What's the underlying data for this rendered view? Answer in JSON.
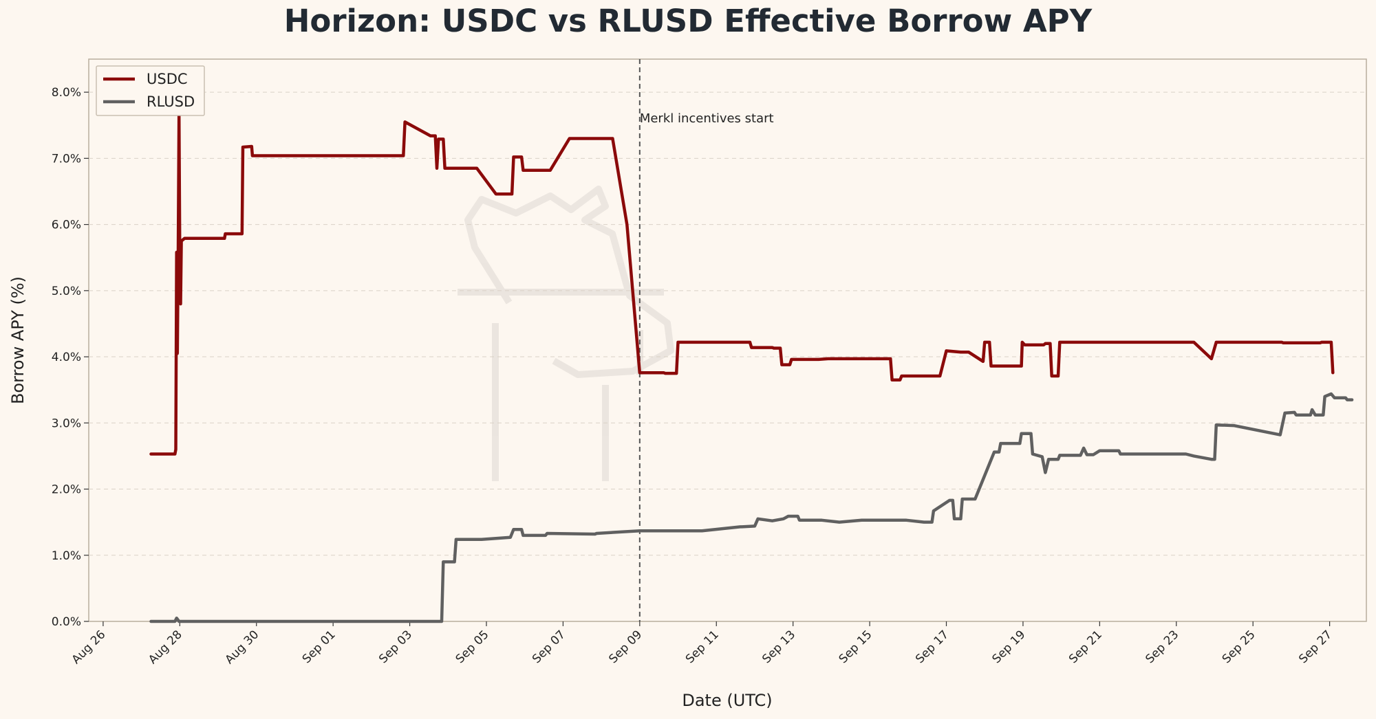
{
  "chart_data": {
    "type": "line",
    "title": "Horizon: USDC vs RLUSD Effective Borrow APY",
    "xlabel": "Date (UTC)",
    "ylabel": "Borrow APY (%)",
    "x_is_date": true,
    "x_ticks": [
      {
        "date": "2025-08-26",
        "label": "Aug 26"
      },
      {
        "date": "2025-08-28",
        "label": "Aug 28"
      },
      {
        "date": "2025-08-30",
        "label": "Aug 30"
      },
      {
        "date": "2025-09-01",
        "label": "Sep 01"
      },
      {
        "date": "2025-09-03",
        "label": "Sep 03"
      },
      {
        "date": "2025-09-05",
        "label": "Sep 05"
      },
      {
        "date": "2025-09-07",
        "label": "Sep 07"
      },
      {
        "date": "2025-09-09",
        "label": "Sep 09"
      },
      {
        "date": "2025-09-11",
        "label": "Sep 11"
      },
      {
        "date": "2025-09-13",
        "label": "Sep 13"
      },
      {
        "date": "2025-09-15",
        "label": "Sep 15"
      },
      {
        "date": "2025-09-17",
        "label": "Sep 17"
      },
      {
        "date": "2025-09-19",
        "label": "Sep 19"
      },
      {
        "date": "2025-09-21",
        "label": "Sep 21"
      },
      {
        "date": "2025-09-23",
        "label": "Sep 23"
      },
      {
        "date": "2025-09-25",
        "label": "Sep 25"
      },
      {
        "date": "2025-09-27",
        "label": "Sep 27"
      }
    ],
    "xlim": [
      "2025-08-25T15:00",
      "2025-09-27T23:00"
    ],
    "ylim": [
      0,
      8.5
    ],
    "y_ticks": [
      {
        "value": 0,
        "label": "0.0%"
      },
      {
        "value": 1,
        "label": "1.0%"
      },
      {
        "value": 2,
        "label": "2.0%"
      },
      {
        "value": 3,
        "label": "3.0%"
      },
      {
        "value": 4,
        "label": "4.0%"
      },
      {
        "value": 5,
        "label": "5.0%"
      },
      {
        "value": 6,
        "label": "6.0%"
      },
      {
        "value": 7,
        "label": "7.0%"
      },
      {
        "value": 8,
        "label": "8.0%"
      }
    ],
    "grid": "horizontal dashed",
    "legend_position": "top-left",
    "annotation": {
      "date": "2025-09-09T00:00",
      "text": "Merkl incentives start"
    },
    "series": [
      {
        "name": "USDC",
        "color": "#8b0a0a",
        "points": [
          [
            "2025-08-27T06:00",
            2.53
          ],
          [
            "2025-08-27T21:00",
            2.53
          ],
          [
            "2025-08-27T21:30",
            2.6
          ],
          [
            "2025-08-27T22:00",
            5.58
          ],
          [
            "2025-08-27T22:30",
            4.05
          ],
          [
            "2025-08-27T23:00",
            5.6
          ],
          [
            "2025-08-27T23:30",
            7.7
          ],
          [
            "2025-08-28T00:00",
            5.6
          ],
          [
            "2025-08-28T00:30",
            4.8
          ],
          [
            "2025-08-28T01:00",
            5.75
          ],
          [
            "2025-08-28T03:00",
            5.79
          ],
          [
            "2025-08-29T04:00",
            5.79
          ],
          [
            "2025-08-29T04:30",
            5.86
          ],
          [
            "2025-08-29T15:00",
            5.86
          ],
          [
            "2025-08-29T15:30",
            7.17
          ],
          [
            "2025-08-29T21:00",
            7.18
          ],
          [
            "2025-08-29T21:30",
            7.04
          ],
          [
            "2025-09-02T20:00",
            7.04
          ],
          [
            "2025-09-02T21:00",
            7.55
          ],
          [
            "2025-09-03T13:00",
            7.34
          ],
          [
            "2025-09-03T16:00",
            7.34
          ],
          [
            "2025-09-03T17:00",
            6.85
          ],
          [
            "2025-09-03T18:00",
            7.29
          ],
          [
            "2025-09-03T21:00",
            7.29
          ],
          [
            "2025-09-03T22:00",
            6.85
          ],
          [
            "2025-09-04T18:00",
            6.85
          ],
          [
            "2025-09-05T06:00",
            6.46
          ],
          [
            "2025-09-05T16:00",
            6.46
          ],
          [
            "2025-09-05T17:00",
            7.02
          ],
          [
            "2025-09-05T22:00",
            7.02
          ],
          [
            "2025-09-05T23:00",
            6.82
          ],
          [
            "2025-09-06T16:00",
            6.82
          ],
          [
            "2025-09-07T04:00",
            7.3
          ],
          [
            "2025-09-08T07:00",
            7.3
          ],
          [
            "2025-09-08T16:00",
            6.0
          ],
          [
            "2025-09-09T00:00",
            3.76
          ],
          [
            "2025-09-09T15:00",
            3.76
          ],
          [
            "2025-09-09T16:00",
            3.75
          ],
          [
            "2025-09-09T23:00",
            3.75
          ],
          [
            "2025-09-10T00:00",
            4.22
          ],
          [
            "2025-09-10T19:00",
            4.22
          ],
          [
            "2025-09-11T21:00",
            4.22
          ],
          [
            "2025-09-11T22:00",
            4.14
          ],
          [
            "2025-09-12T11:00",
            4.14
          ],
          [
            "2025-09-12T12:00",
            4.13
          ],
          [
            "2025-09-12T16:00",
            4.13
          ],
          [
            "2025-09-12T17:00",
            3.88
          ],
          [
            "2025-09-12T22:00",
            3.88
          ],
          [
            "2025-09-12T23:00",
            3.96
          ],
          [
            "2025-09-13T16:00",
            3.96
          ],
          [
            "2025-09-13T22:00",
            3.97
          ],
          [
            "2025-09-15T13:00",
            3.97
          ],
          [
            "2025-09-15T14:00",
            3.65
          ],
          [
            "2025-09-15T19:00",
            3.65
          ],
          [
            "2025-09-15T20:00",
            3.71
          ],
          [
            "2025-09-16T20:00",
            3.71
          ],
          [
            "2025-09-17T00:00",
            4.09
          ],
          [
            "2025-09-17T09:00",
            4.07
          ],
          [
            "2025-09-17T14:00",
            4.07
          ],
          [
            "2025-09-17T23:00",
            3.93
          ],
          [
            "2025-09-18T00:00",
            4.22
          ],
          [
            "2025-09-18T03:00",
            4.22
          ],
          [
            "2025-09-18T04:00",
            3.86
          ],
          [
            "2025-09-18T23:00",
            3.86
          ],
          [
            "2025-09-18T23:30",
            4.22
          ],
          [
            "2025-09-19T01:00",
            4.18
          ],
          [
            "2025-09-19T13:00",
            4.18
          ],
          [
            "2025-09-19T14:00",
            4.2
          ],
          [
            "2025-09-19T17:00",
            4.2
          ],
          [
            "2025-09-19T18:00",
            3.71
          ],
          [
            "2025-09-19T22:00",
            3.71
          ],
          [
            "2025-09-19T23:00",
            4.22
          ],
          [
            "2025-09-22T12:00",
            4.22
          ],
          [
            "2025-09-22T13:00",
            4.22
          ],
          [
            "2025-09-23T11:00",
            4.22
          ],
          [
            "2025-09-23T22:00",
            3.97
          ],
          [
            "2025-09-24T01:00",
            4.22
          ],
          [
            "2025-09-25T18:00",
            4.22
          ],
          [
            "2025-09-25T19:00",
            4.21
          ],
          [
            "2025-09-26T18:00",
            4.21
          ],
          [
            "2025-09-26T19:00",
            4.22
          ],
          [
            "2025-09-27T01:00",
            4.22
          ],
          [
            "2025-09-27T02:00",
            3.76
          ]
        ]
      },
      {
        "name": "RLUSD",
        "color": "#606060",
        "points": [
          [
            "2025-08-27T06:00",
            0.0
          ],
          [
            "2025-08-27T21:00",
            0.0
          ],
          [
            "2025-08-27T22:00",
            0.05
          ],
          [
            "2025-08-27T23:30",
            0.0
          ],
          [
            "2025-09-03T20:00",
            0.0
          ],
          [
            "2025-09-03T21:00",
            0.9
          ],
          [
            "2025-09-04T04:00",
            0.9
          ],
          [
            "2025-09-04T05:00",
            1.24
          ],
          [
            "2025-09-04T21:00",
            1.24
          ],
          [
            "2025-09-05T15:00",
            1.27
          ],
          [
            "2025-09-05T17:00",
            1.39
          ],
          [
            "2025-09-05T22:00",
            1.39
          ],
          [
            "2025-09-05T23:00",
            1.3
          ],
          [
            "2025-09-06T13:00",
            1.3
          ],
          [
            "2025-09-06T14:00",
            1.33
          ],
          [
            "2025-09-07T20:00",
            1.32
          ],
          [
            "2025-09-07T21:00",
            1.33
          ],
          [
            "2025-09-09T00:00",
            1.37
          ],
          [
            "2025-09-10T15:00",
            1.37
          ],
          [
            "2025-09-11T15:00",
            1.43
          ],
          [
            "2025-09-11T16:00",
            1.43
          ],
          [
            "2025-09-12T00:00",
            1.44
          ],
          [
            "2025-09-12T02:00",
            1.55
          ],
          [
            "2025-09-12T11:00",
            1.52
          ],
          [
            "2025-09-12T18:00",
            1.55
          ],
          [
            "2025-09-12T21:00",
            1.59
          ],
          [
            "2025-09-13T03:00",
            1.59
          ],
          [
            "2025-09-13T04:00",
            1.53
          ],
          [
            "2025-09-13T18:00",
            1.53
          ],
          [
            "2025-09-14T05:00",
            1.5
          ],
          [
            "2025-09-14T19:00",
            1.53
          ],
          [
            "2025-09-15T23:00",
            1.53
          ],
          [
            "2025-09-16T10:00",
            1.5
          ],
          [
            "2025-09-16T15:00",
            1.5
          ],
          [
            "2025-09-16T16:00",
            1.67
          ],
          [
            "2025-09-17T02:00",
            1.83
          ],
          [
            "2025-09-17T04:00",
            1.83
          ],
          [
            "2025-09-17T05:00",
            1.55
          ],
          [
            "2025-09-17T09:00",
            1.55
          ],
          [
            "2025-09-17T10:00",
            1.85
          ],
          [
            "2025-09-17T18:00",
            1.85
          ],
          [
            "2025-09-18T06:00",
            2.56
          ],
          [
            "2025-09-18T09:00",
            2.56
          ],
          [
            "2025-09-18T10:00",
            2.69
          ],
          [
            "2025-09-18T22:00",
            2.69
          ],
          [
            "2025-09-18T23:00",
            2.84
          ],
          [
            "2025-09-19T05:00",
            2.84
          ],
          [
            "2025-09-19T06:00",
            2.53
          ],
          [
            "2025-09-19T12:00",
            2.49
          ],
          [
            "2025-09-19T14:00",
            2.25
          ],
          [
            "2025-09-19T16:00",
            2.45
          ],
          [
            "2025-09-19T22:00",
            2.45
          ],
          [
            "2025-09-19T23:00",
            2.51
          ],
          [
            "2025-09-20T12:00",
            2.51
          ],
          [
            "2025-09-20T14:00",
            2.62
          ],
          [
            "2025-09-20T16:00",
            2.52
          ],
          [
            "2025-09-20T20:00",
            2.52
          ],
          [
            "2025-09-21T00:00",
            2.58
          ],
          [
            "2025-09-21T12:00",
            2.58
          ],
          [
            "2025-09-21T13:00",
            2.53
          ],
          [
            "2025-09-23T00:00",
            2.53
          ],
          [
            "2025-09-23T06:00",
            2.53
          ],
          [
            "2025-09-23T11:00",
            2.5
          ],
          [
            "2025-09-23T22:00",
            2.45
          ],
          [
            "2025-09-24T00:00",
            2.45
          ],
          [
            "2025-09-24T01:00",
            2.97
          ],
          [
            "2025-09-24T12:00",
            2.96
          ],
          [
            "2025-09-25T17:00",
            2.82
          ],
          [
            "2025-09-25T20:00",
            3.15
          ],
          [
            "2025-09-26T02:00",
            3.16
          ],
          [
            "2025-09-26T03:00",
            3.12
          ],
          [
            "2025-09-26T12:00",
            3.12
          ],
          [
            "2025-09-26T13:00",
            3.2
          ],
          [
            "2025-09-26T15:00",
            3.12
          ],
          [
            "2025-09-26T20:00",
            3.12
          ],
          [
            "2025-09-26T21:00",
            3.4
          ],
          [
            "2025-09-27T01:00",
            3.44
          ],
          [
            "2025-09-27T03:00",
            3.38
          ],
          [
            "2025-09-27T10:00",
            3.38
          ],
          [
            "2025-09-27T11:00",
            3.35
          ],
          [
            "2025-09-27T14:00",
            3.35
          ]
        ]
      }
    ]
  }
}
